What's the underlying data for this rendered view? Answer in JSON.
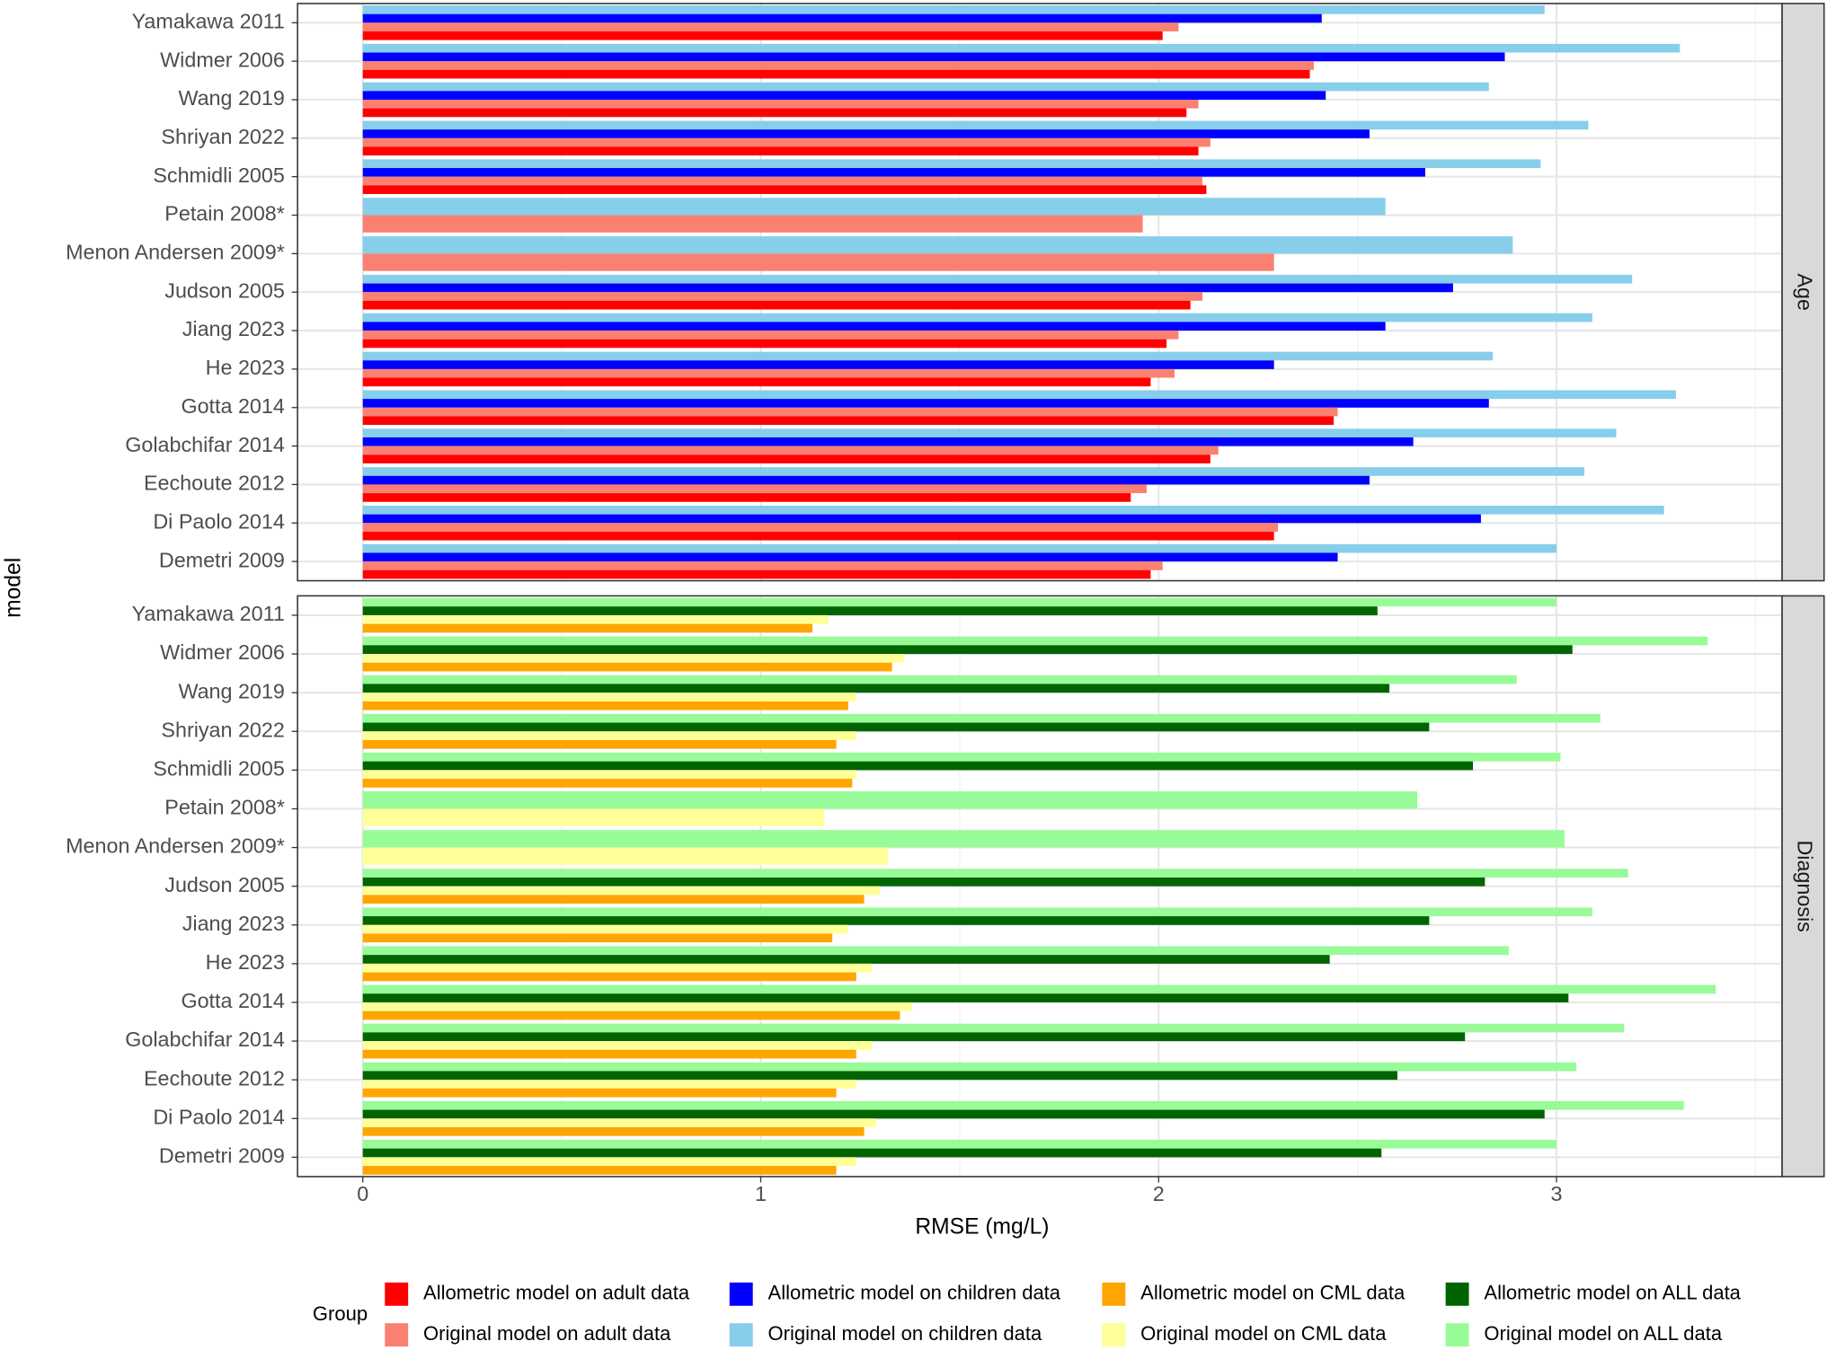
{
  "chart_data": {
    "type": "bar",
    "orientation": "horizontal",
    "xlabel": "RMSE (mg/L)",
    "ylabel": "model",
    "legend_title": "Group",
    "xlim": [
      -0.164,
      3.567
    ],
    "xticks": [
      0,
      1,
      2,
      3
    ],
    "minor_grid": [
      0.5,
      1.5,
      2.5,
      3.5
    ],
    "grid": true,
    "legend_position": "bottom",
    "facets": [
      {
        "label": "Age",
        "categories": [
          "Yamakawa 2011",
          "Widmer 2006",
          "Wang 2019",
          "Shriyan 2022",
          "Schmidli 2005",
          "Petain 2008*",
          "Menon Andersen 2009*",
          "Judson 2005",
          "Jiang 2023",
          "He 2023",
          "Gotta 2014",
          "Golabchifar 2014",
          "Eechoute 2012",
          "Di Paolo 2014",
          "Demetri 2009"
        ],
        "series": [
          {
            "name": "Allometric model on adult data",
            "color": "#ff0000",
            "values": [
              2.01,
              2.38,
              2.07,
              2.1,
              2.12,
              null,
              null,
              2.08,
              2.02,
              1.98,
              2.44,
              2.13,
              1.93,
              2.29,
              1.98
            ]
          },
          {
            "name": "Original model on adult data",
            "color": "#fa8072",
            "values": [
              2.05,
              2.39,
              2.1,
              2.13,
              2.11,
              1.96,
              2.29,
              2.11,
              2.05,
              2.04,
              2.45,
              2.15,
              1.97,
              2.3,
              2.01
            ]
          },
          {
            "name": "Allometric model on children data",
            "color": "#0000ff",
            "values": [
              2.41,
              2.87,
              2.42,
              2.53,
              2.67,
              null,
              null,
              2.74,
              2.57,
              2.29,
              2.83,
              2.64,
              2.53,
              2.81,
              2.45
            ]
          },
          {
            "name": "Original model on children data",
            "color": "#87ceeb",
            "values": [
              2.97,
              3.31,
              2.83,
              3.08,
              2.96,
              2.57,
              2.89,
              3.19,
              3.09,
              2.84,
              3.3,
              3.15,
              3.07,
              3.27,
              3.0
            ]
          }
        ]
      },
      {
        "label": "Diagnosis",
        "categories": [
          "Yamakawa 2011",
          "Widmer 2006",
          "Wang 2019",
          "Shriyan 2022",
          "Schmidli 2005",
          "Petain 2008*",
          "Menon Andersen 2009*",
          "Judson 2005",
          "Jiang 2023",
          "He 2023",
          "Gotta 2014",
          "Golabchifar 2014",
          "Eechoute 2012",
          "Di Paolo 2014",
          "Demetri 2009"
        ],
        "series": [
          {
            "name": "Allometric model on CML data",
            "color": "#ffa500",
            "values": [
              1.13,
              1.33,
              1.22,
              1.19,
              1.23,
              null,
              null,
              1.26,
              1.18,
              1.24,
              1.35,
              1.24,
              1.19,
              1.26,
              1.19
            ]
          },
          {
            "name": "Original model on CML data",
            "color": "#ffff99",
            "values": [
              1.17,
              1.36,
              1.24,
              1.24,
              1.24,
              1.16,
              1.32,
              1.3,
              1.22,
              1.28,
              1.38,
              1.28,
              1.24,
              1.29,
              1.24
            ]
          },
          {
            "name": "Allometric model on ALL data",
            "color": "#006400",
            "values": [
              2.55,
              3.04,
              2.58,
              2.68,
              2.79,
              null,
              null,
              2.82,
              2.68,
              2.43,
              3.03,
              2.77,
              2.6,
              2.97,
              2.56
            ]
          },
          {
            "name": "Original model on ALL data",
            "color": "#98fb98",
            "values": [
              3.0,
              3.38,
              2.9,
              3.11,
              3.01,
              2.65,
              3.02,
              3.18,
              3.09,
              2.88,
              3.4,
              3.17,
              3.05,
              3.32,
              3.0
            ]
          }
        ]
      }
    ]
  }
}
